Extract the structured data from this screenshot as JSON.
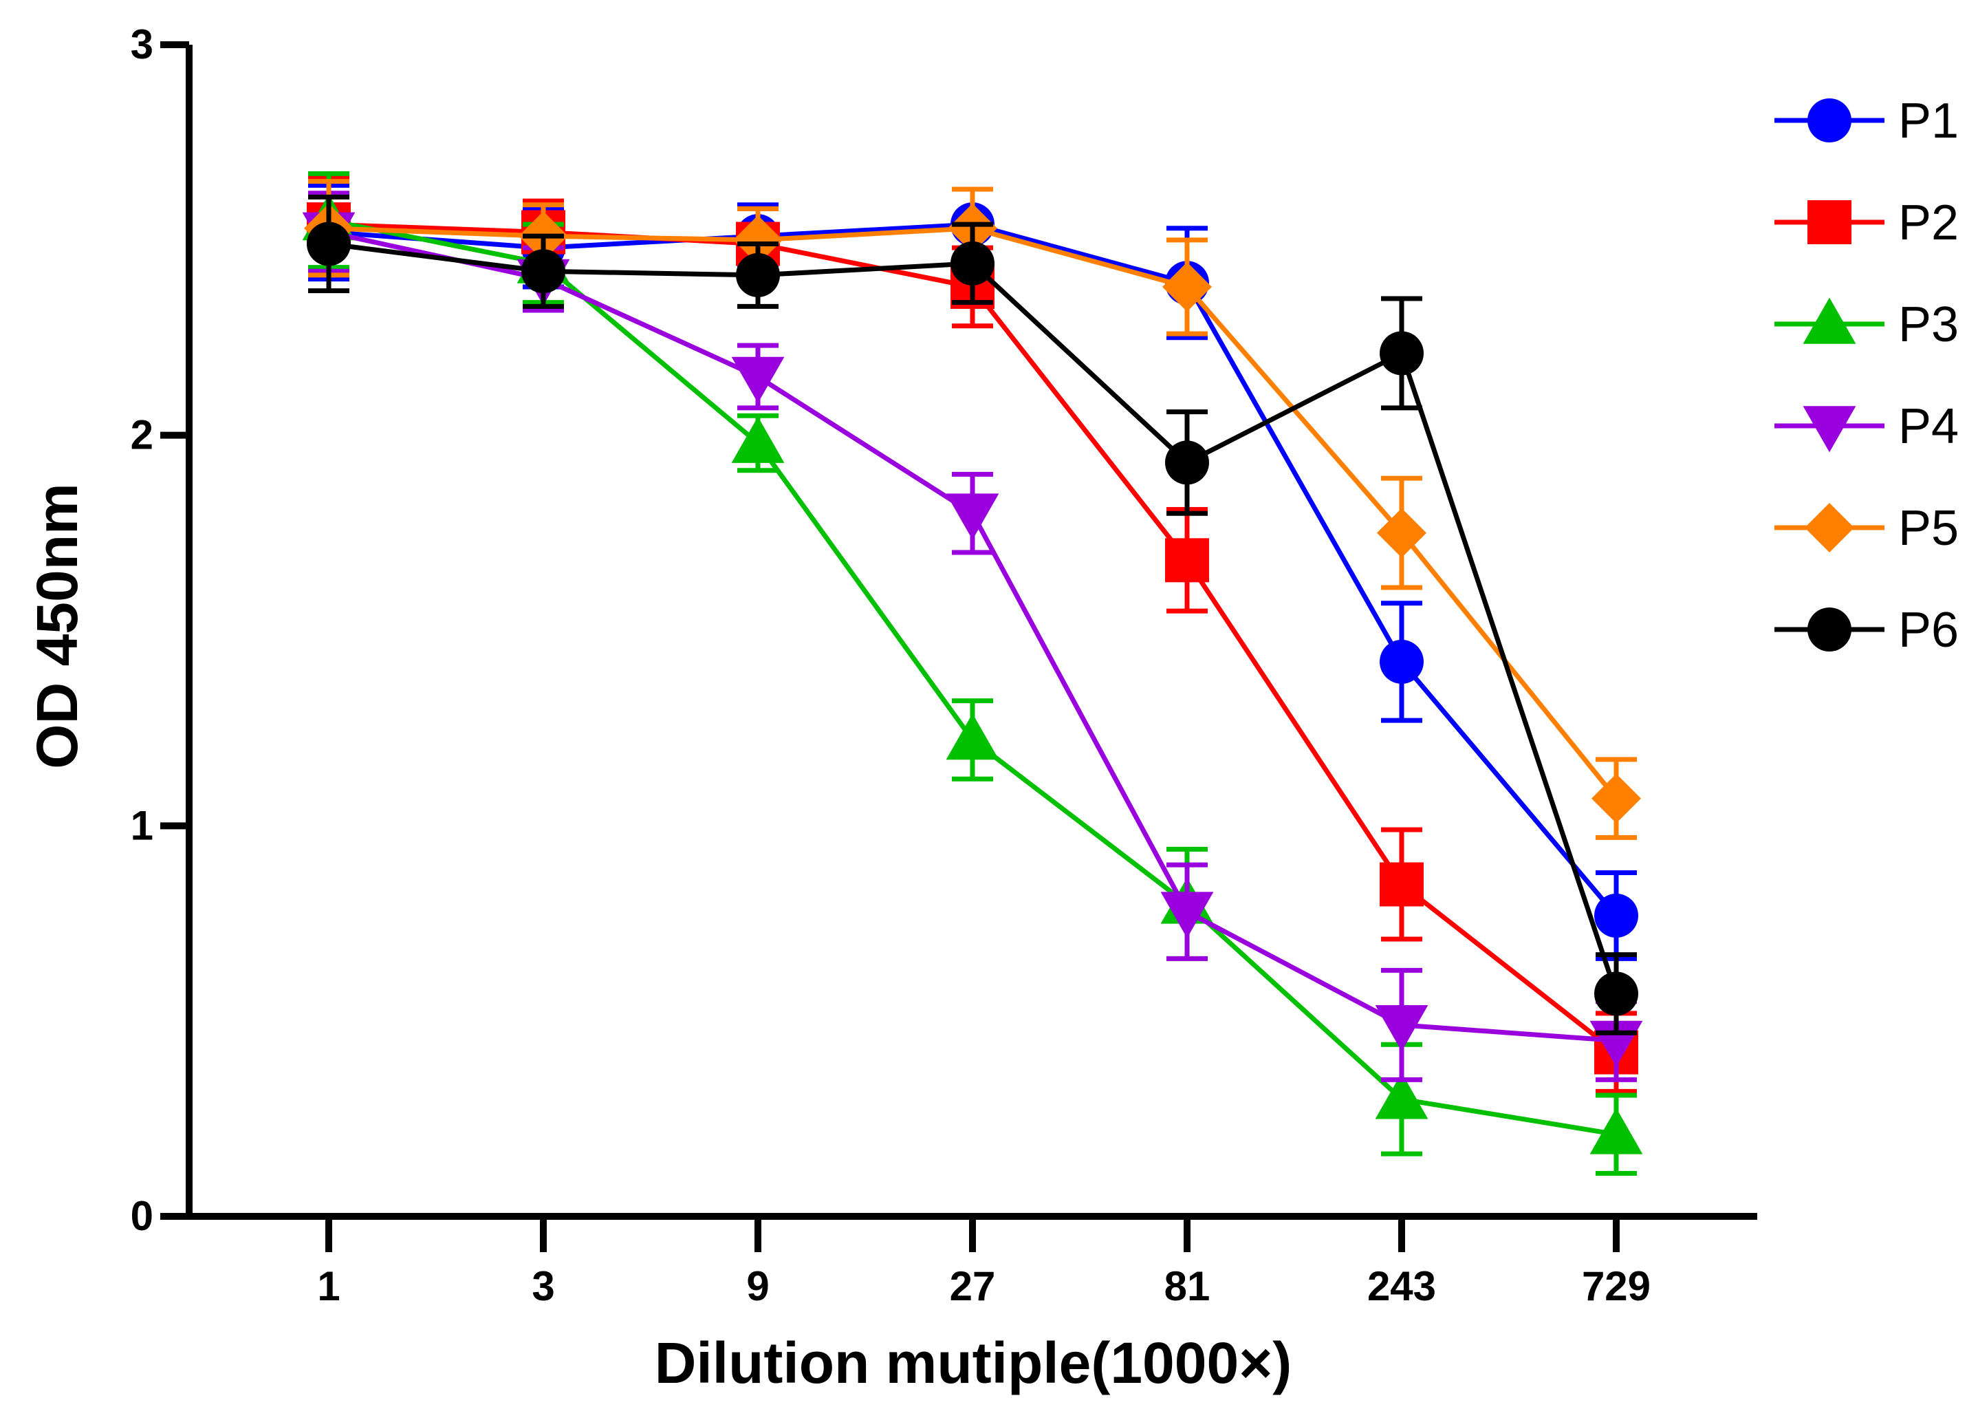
{
  "chart_data": {
    "type": "line",
    "title": "",
    "xlabel": "Dilution mutiple(1000×)",
    "ylabel": "OD 450nm",
    "categories": [
      "1",
      "3",
      "9",
      "27",
      "81",
      "243",
      "729"
    ],
    "y_ticks": [
      "0",
      "1",
      "2",
      "3"
    ],
    "ylim": [
      0,
      3
    ],
    "grid": false,
    "legend_position": "right",
    "series": [
      {
        "name": "P1",
        "color": "#0000ff",
        "marker": "circle",
        "values": [
          2.52,
          2.48,
          2.51,
          2.54,
          2.39,
          1.42,
          0.77
        ],
        "errors": [
          0.12,
          0.1,
          0.08,
          0.09,
          0.14,
          0.15,
          0.11
        ]
      },
      {
        "name": "P2",
        "color": "#ff0000",
        "marker": "square",
        "values": [
          2.54,
          2.52,
          2.49,
          2.38,
          1.68,
          0.85,
          0.42
        ],
        "errors": [
          0.12,
          0.08,
          0.09,
          0.1,
          0.13,
          0.14,
          0.1
        ]
      },
      {
        "name": "P3",
        "color": "#00c000",
        "marker": "triangle-up",
        "values": [
          2.55,
          2.44,
          1.98,
          1.22,
          0.8,
          0.3,
          0.21
        ],
        "errors": [
          0.12,
          0.1,
          0.07,
          0.1,
          0.14,
          0.14,
          0.1
        ]
      },
      {
        "name": "P4",
        "color": "#9900dd",
        "marker": "triangle-down",
        "values": [
          2.52,
          2.4,
          2.15,
          1.8,
          0.78,
          0.49,
          0.45
        ],
        "errors": [
          0.1,
          0.08,
          0.08,
          0.1,
          0.12,
          0.14,
          0.1
        ]
      },
      {
        "name": "P5",
        "color": "#ff8000",
        "marker": "diamond",
        "values": [
          2.53,
          2.51,
          2.5,
          2.53,
          2.38,
          1.75,
          1.07
        ],
        "errors": [
          0.12,
          0.08,
          0.08,
          0.1,
          0.12,
          0.14,
          0.1
        ]
      },
      {
        "name": "P6",
        "color": "#000000",
        "marker": "circle",
        "values": [
          2.49,
          2.42,
          2.41,
          2.44,
          1.93,
          2.21,
          0.57
        ],
        "errors": [
          0.12,
          0.09,
          0.08,
          0.1,
          0.13,
          0.14,
          0.1
        ]
      }
    ]
  }
}
